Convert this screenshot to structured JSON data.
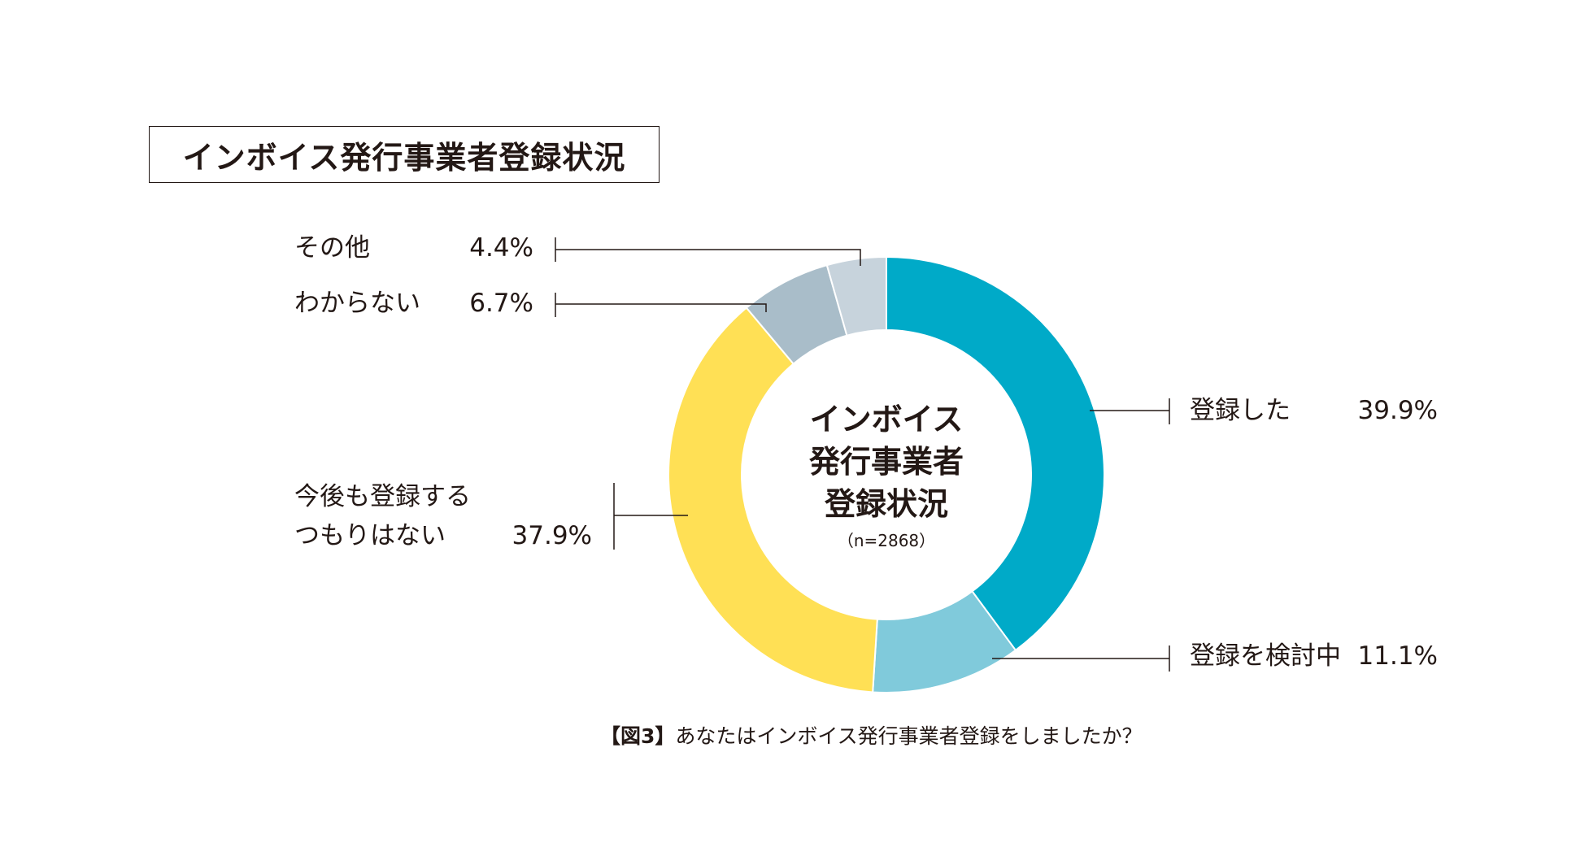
{
  "title": "インボイス発行事業者登録状況",
  "center_label": {
    "line1": "インボイス",
    "line2": "発行事業者",
    "line3": "登録状況",
    "sample": "（n=2868）"
  },
  "caption": {
    "figure": "【図3】",
    "text": "あなたはインボイス発行事業者登録をしましたか？"
  },
  "chart_data": {
    "type": "pie",
    "subtype": "donut",
    "title": "インボイス発行事業者登録状況",
    "unit": "%",
    "slices": [
      {
        "label": "登録した",
        "value": 39.9,
        "display": "39.9%",
        "color": "#00aac8"
      },
      {
        "label": "登録を検討中",
        "value": 11.1,
        "display": "11.1%",
        "color": "#80cadb"
      },
      {
        "label": "今後も登録するつもりはない",
        "label_line1": "今後も登録する",
        "label_line2": "つもりはない",
        "value": 37.9,
        "display": "37.9%",
        "color": "#ffe055"
      },
      {
        "label": "わからない",
        "value": 6.7,
        "display": "6.7%",
        "color": "#a9bdc9"
      },
      {
        "label": "その他",
        "value": 4.4,
        "display": "4.4%",
        "color": "#c7d3dc"
      }
    ]
  }
}
